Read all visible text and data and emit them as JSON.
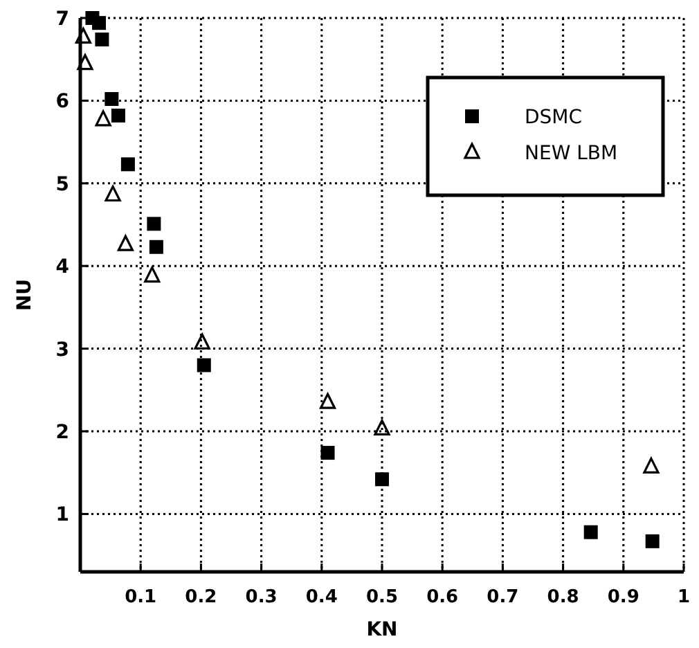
{
  "chart_data": {
    "type": "scatter",
    "xlabel": "KN",
    "ylabel": "NU",
    "xlim": [
      0,
      1
    ],
    "ylim": [
      0.3,
      7
    ],
    "xticks": [
      0.1,
      0.2,
      0.3,
      0.4,
      0.5,
      0.6,
      0.7,
      0.8,
      0.9,
      1
    ],
    "yticks": [
      1,
      2,
      3,
      4,
      5,
      6,
      7
    ],
    "grid": true,
    "legend": "top right",
    "series": [
      {
        "name": "DSMC",
        "color": "#000000",
        "marker": "square",
        "x": [
          0.02,
          0.031,
          0.036,
          0.052,
          0.063,
          0.079,
          0.122,
          0.126,
          0.205,
          0.41,
          0.5,
          0.846,
          0.948
        ],
        "values": [
          7.0,
          6.94,
          6.74,
          6.02,
          5.82,
          5.23,
          4.51,
          4.23,
          2.8,
          1.74,
          1.42,
          0.78,
          0.67
        ]
      },
      {
        "name": "NEW LBM",
        "color": "#000000",
        "marker": "triangle",
        "x": [
          0.005,
          0.008,
          0.038,
          0.054,
          0.075,
          0.119,
          0.202,
          0.41,
          0.5,
          0.946
        ],
        "values": [
          6.77,
          6.45,
          5.77,
          4.86,
          4.26,
          3.88,
          3.07,
          2.35,
          2.03,
          1.57
        ]
      }
    ]
  }
}
